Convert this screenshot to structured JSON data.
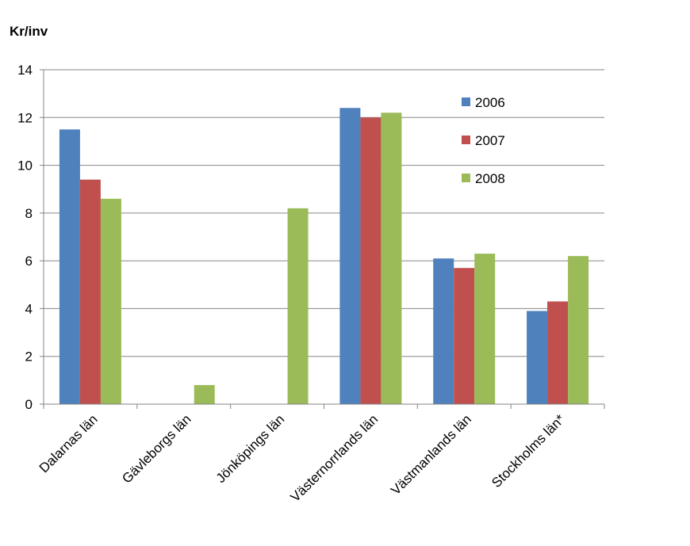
{
  "chart_data": {
    "type": "bar",
    "unit_label": "Kr/inv",
    "categories": [
      "Dalarnas län",
      "Gävleborgs län",
      "Jönköpings län",
      "Västernorrlands län",
      "Västmanlands län",
      "Stockholms län*"
    ],
    "series": [
      {
        "name": "2006",
        "color": "#4F81BD",
        "values": [
          11.5,
          null,
          null,
          12.4,
          6.1,
          3.9
        ]
      },
      {
        "name": "2007",
        "color": "#C0504D",
        "values": [
          9.4,
          null,
          null,
          12.0,
          5.7,
          4.3
        ]
      },
      {
        "name": "2008",
        "color": "#9BBB59",
        "values": [
          8.6,
          0.8,
          8.2,
          12.2,
          6.3,
          6.2
        ]
      }
    ],
    "ylim": [
      0,
      14
    ],
    "yticks": [
      0,
      2,
      4,
      6,
      8,
      10,
      12,
      14
    ],
    "grid": true,
    "legend_position": "top-right, inside plot"
  }
}
